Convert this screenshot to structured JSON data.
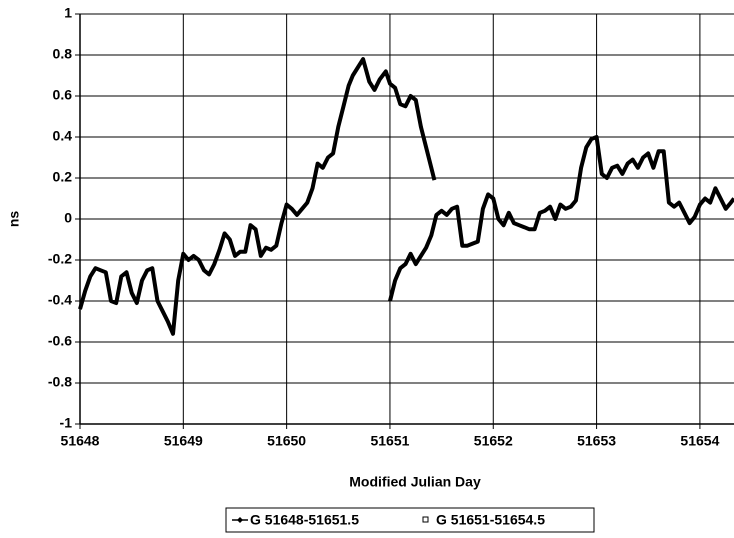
{
  "chart_data": {
    "type": "line",
    "xlabel": "Modified Julian Day",
    "ylabel": "ns",
    "xlim": [
      51648,
      51654.33
    ],
    "xticks": [
      51648,
      51649,
      51650,
      51651,
      51652,
      51653,
      51654
    ],
    "ylim": [
      -1,
      1
    ],
    "yticks": [
      -1,
      -0.8,
      -0.6,
      -0.4,
      -0.2,
      0,
      0.2,
      0.4,
      0.6,
      0.8,
      1
    ],
    "grid": true,
    "legend": "bottom",
    "series": [
      {
        "name": "G 51648-51651.5",
        "color": "#000000",
        "marker": "diamond",
        "x": [
          51648.0,
          51648.05,
          51648.1,
          51648.15,
          51648.2,
          51648.25,
          51648.3,
          51648.35,
          51648.4,
          51648.45,
          51648.5,
          51648.55,
          51648.6,
          51648.65,
          51648.7,
          51648.75,
          51648.8,
          51648.85,
          51648.9,
          51648.95,
          51649.0,
          51649.05,
          51649.1,
          51649.15,
          51649.2,
          51649.25,
          51649.3,
          51649.35,
          51649.4,
          51649.45,
          51649.5,
          51649.55,
          51649.6,
          51649.65,
          51649.7,
          51649.75,
          51649.8,
          51649.85,
          51649.9,
          51649.95,
          51650.0,
          51650.05,
          51650.1,
          51650.15,
          51650.2,
          51650.25,
          51650.3,
          51650.35,
          51650.4,
          51650.45,
          51650.5,
          51650.55,
          51650.6,
          51650.64,
          51650.74,
          51650.8,
          51650.85,
          51650.9,
          51650.96,
          51651.0,
          51651.05,
          51651.1,
          51651.15,
          51651.2,
          51651.25,
          51651.3,
          51651.35,
          51651.4,
          51651.43
        ],
        "values": [
          -0.44,
          -0.35,
          -0.28,
          -0.24,
          -0.25,
          -0.26,
          -0.4,
          -0.41,
          -0.28,
          -0.26,
          -0.36,
          -0.41,
          -0.3,
          -0.25,
          -0.24,
          -0.4,
          -0.45,
          -0.5,
          -0.56,
          -0.3,
          -0.17,
          -0.2,
          -0.18,
          -0.2,
          -0.25,
          -0.27,
          -0.22,
          -0.15,
          -0.07,
          -0.1,
          -0.18,
          -0.16,
          -0.16,
          -0.03,
          -0.05,
          -0.18,
          -0.14,
          -0.15,
          -0.13,
          -0.02,
          0.07,
          0.05,
          0.02,
          0.05,
          0.08,
          0.15,
          0.27,
          0.25,
          0.3,
          0.32,
          0.45,
          0.55,
          0.65,
          0.7,
          0.78,
          0.67,
          0.63,
          0.68,
          0.72,
          0.66,
          0.64,
          0.56,
          0.55,
          0.6,
          0.58,
          0.45,
          0.35,
          0.25,
          0.19
        ]
      },
      {
        "name": "G 51651-51654.5",
        "color": "#000000",
        "marker": "square",
        "x": [
          51651.0,
          51651.05,
          51651.1,
          51651.15,
          51651.2,
          51651.25,
          51651.3,
          51651.35,
          51651.4,
          51651.45,
          51651.5,
          51651.55,
          51651.6,
          51651.65,
          51651.7,
          51651.75,
          51651.8,
          51651.85,
          51651.9,
          51651.95,
          51652.0,
          51652.05,
          51652.1,
          51652.15,
          51652.2,
          51652.25,
          51652.3,
          51652.35,
          51652.4,
          51652.45,
          51652.5,
          51652.55,
          51652.6,
          51652.65,
          51652.7,
          51652.75,
          51652.8,
          51652.85,
          51652.9,
          51652.95,
          51653.0,
          51653.05,
          51653.1,
          51653.15,
          51653.2,
          51653.25,
          51653.3,
          51653.35,
          51653.4,
          51653.45,
          51653.5,
          51653.55,
          51653.6,
          51653.65,
          51653.7,
          51653.75,
          51653.8,
          51653.85,
          51653.9,
          51653.95,
          51654.0,
          51654.05,
          51654.1,
          51654.15,
          51654.2,
          51654.25,
          51654.3,
          51654.33
        ],
        "values": [
          -0.4,
          -0.3,
          -0.24,
          -0.22,
          -0.17,
          -0.22,
          -0.18,
          -0.14,
          -0.08,
          0.02,
          0.04,
          0.02,
          0.05,
          0.06,
          -0.13,
          -0.13,
          -0.12,
          -0.11,
          0.05,
          0.12,
          0.1,
          0.0,
          -0.03,
          0.03,
          -0.02,
          -0.03,
          -0.04,
          -0.05,
          -0.05,
          0.03,
          0.04,
          0.06,
          0.0,
          0.07,
          0.05,
          0.06,
          0.09,
          0.25,
          0.35,
          0.39,
          0.4,
          0.22,
          0.2,
          0.25,
          0.26,
          0.22,
          0.27,
          0.29,
          0.25,
          0.3,
          0.32,
          0.25,
          0.33,
          0.33,
          0.08,
          0.06,
          0.08,
          0.03,
          -0.02,
          0.01,
          0.07,
          0.1,
          0.08,
          0.15,
          0.1,
          0.05,
          0.08,
          0.1
        ]
      }
    ]
  }
}
